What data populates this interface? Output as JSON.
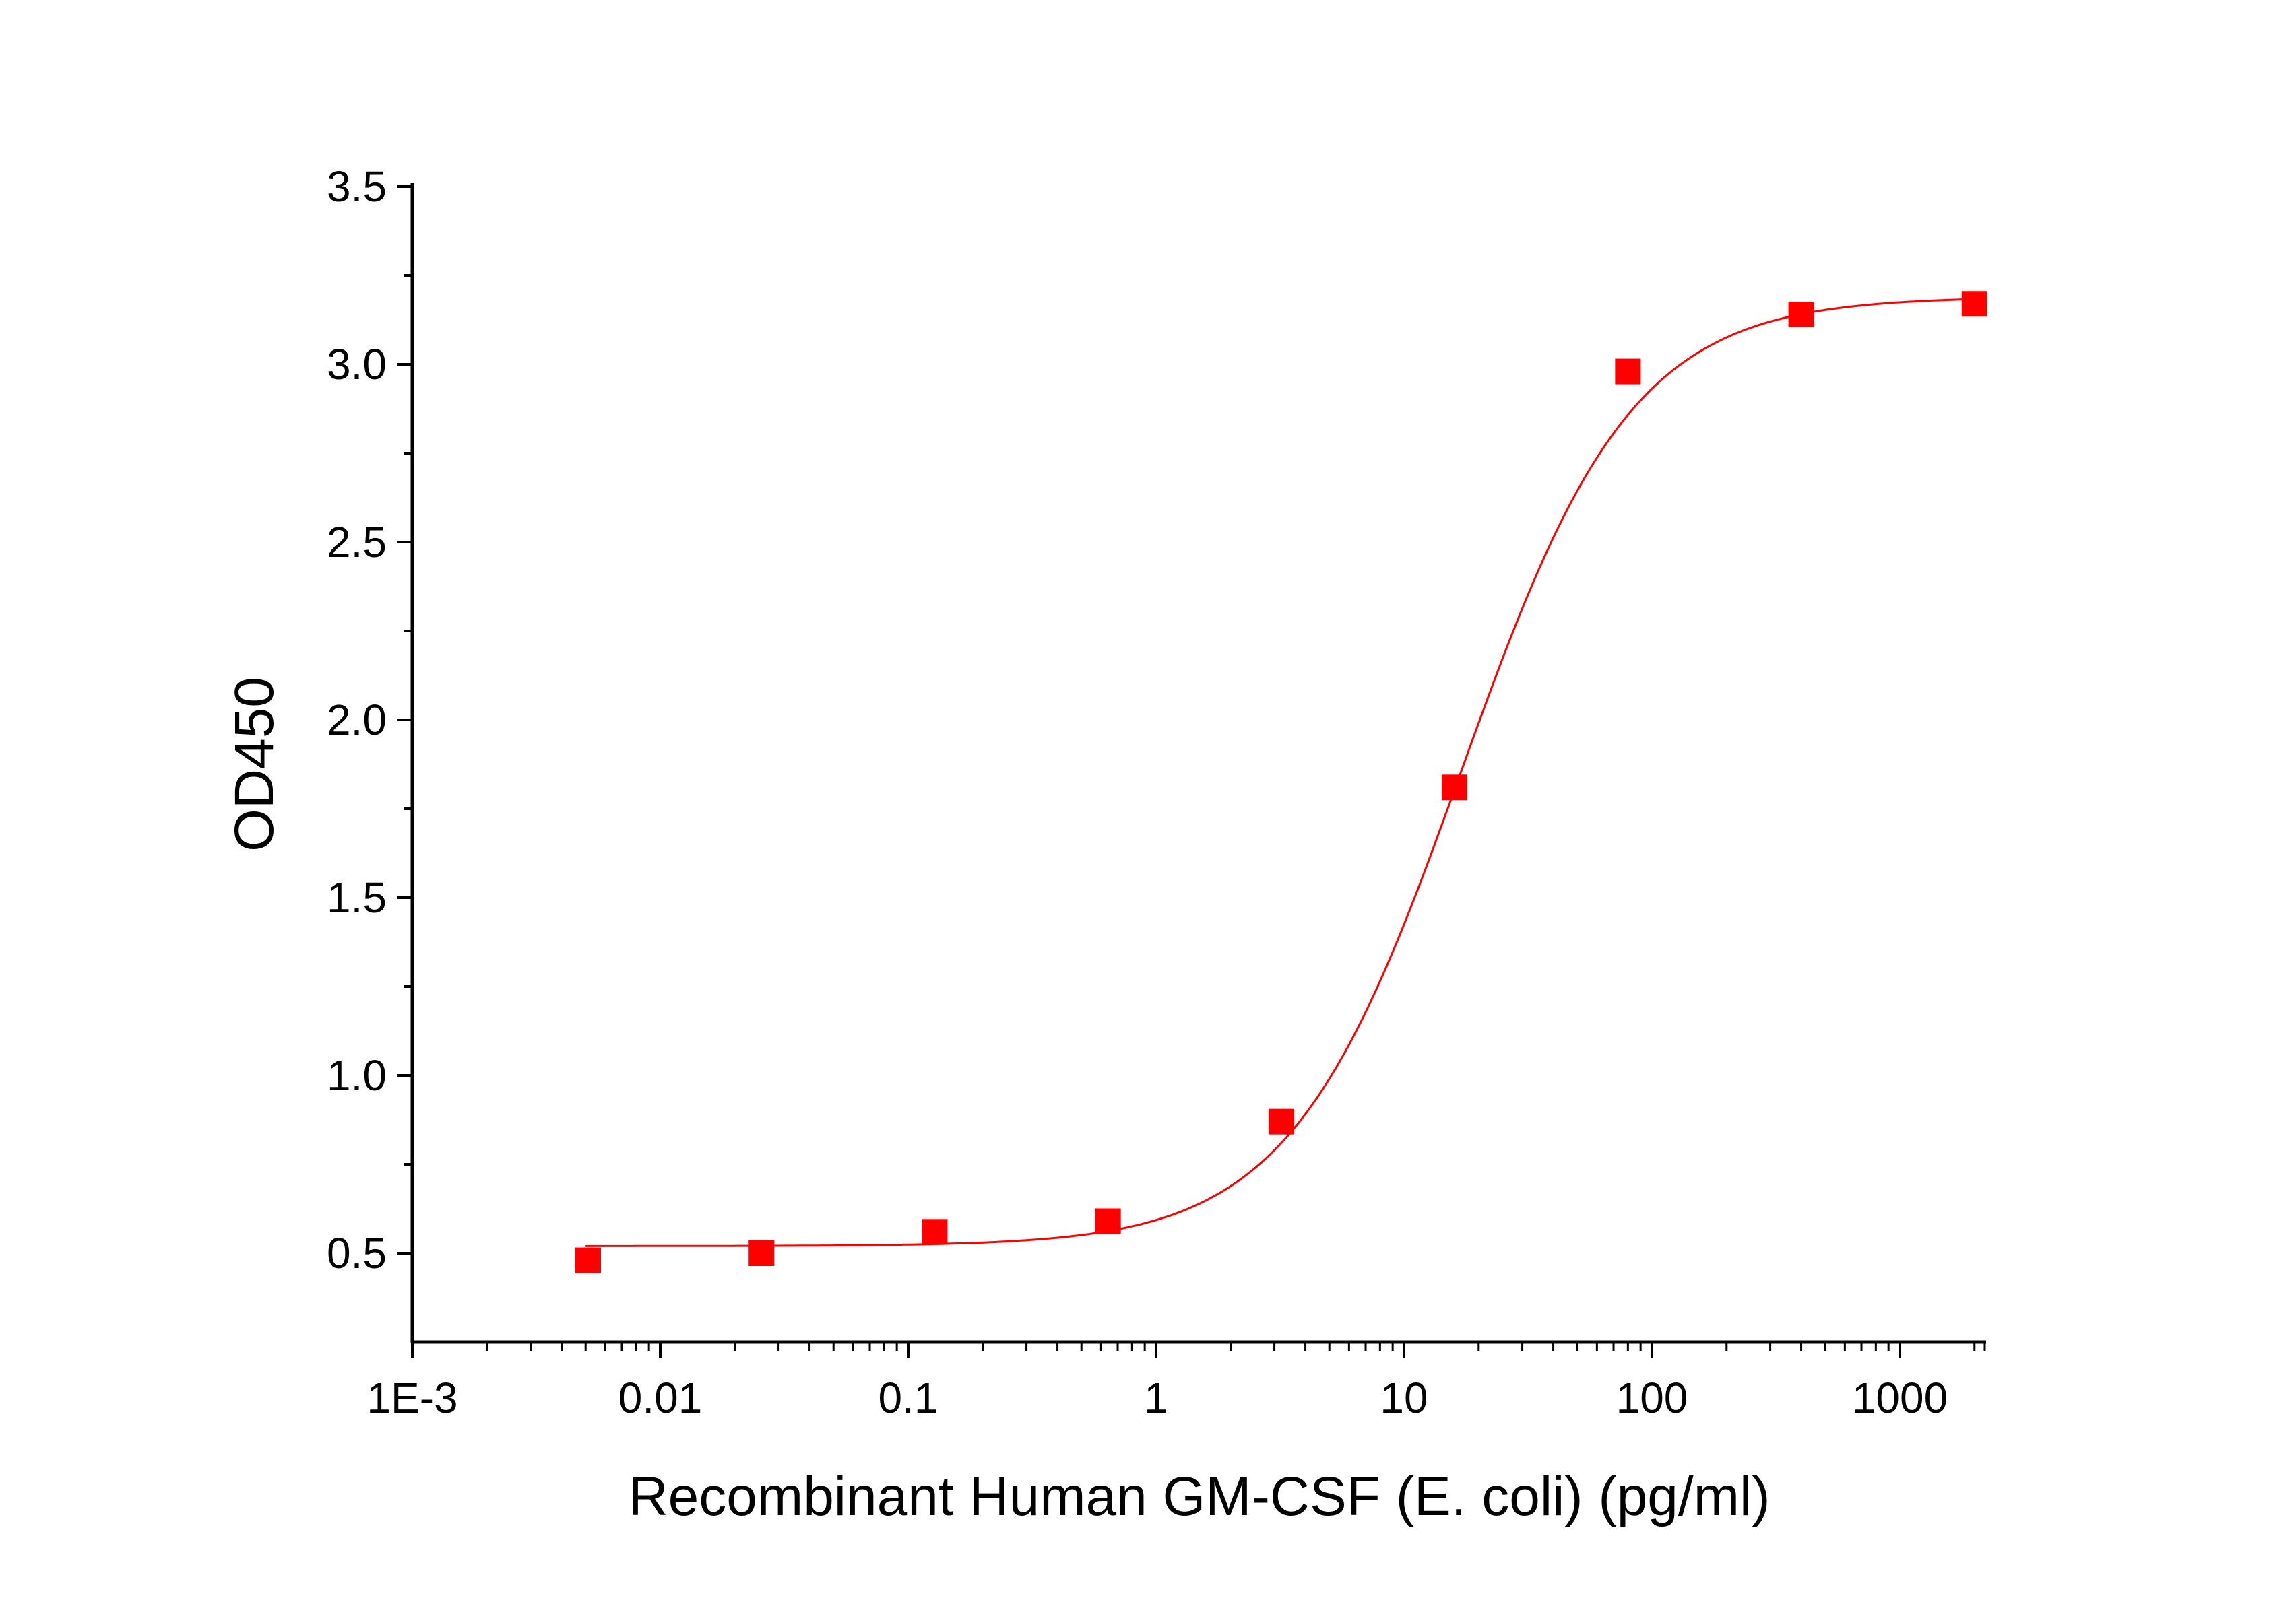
{
  "chart_data": {
    "type": "scatter",
    "title": "",
    "xlabel": "Recombinant Human GM-CSF (E. coli) (pg/ml)",
    "ylabel": "OD450",
    "x_scale": "log",
    "xlim": [
      0.001,
      2200
    ],
    "ylim": [
      0.25,
      3.5
    ],
    "x_ticks": [
      0.001,
      0.01,
      0.1,
      1,
      10,
      100,
      1000
    ],
    "x_tick_labels": [
      "1E-3",
      "0.01",
      "0.1",
      "1",
      "10",
      "100",
      "1000"
    ],
    "y_ticks": [
      0.5,
      1.0,
      1.5,
      2.0,
      2.5,
      3.0,
      3.5
    ],
    "y_tick_labels": [
      "0.5",
      "1.0",
      "1.5",
      "2.0",
      "2.5",
      "3.0",
      "3.5"
    ],
    "grid": false,
    "legend": "none",
    "series": [
      {
        "marker": "square",
        "color": "#ff0000",
        "x": [
          0.00512,
          0.0256,
          0.128,
          0.64,
          3.2,
          16,
          80,
          400,
          2000
        ],
        "y": [
          0.48,
          0.5,
          0.56,
          0.59,
          0.87,
          1.81,
          2.98,
          3.14,
          3.17
        ]
      }
    ],
    "fit_curve": {
      "model": "4PL",
      "color": "#ff0000",
      "bottom": 0.52,
      "top": 3.19,
      "ec50": 17,
      "hill": 1.26,
      "x_range": [
        0.005,
        2000
      ]
    }
  }
}
